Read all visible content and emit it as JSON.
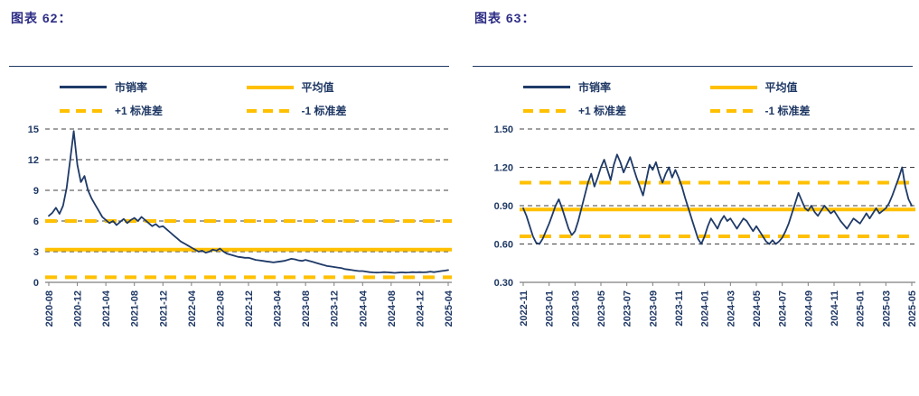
{
  "page": {
    "background": "#ffffff"
  },
  "chart_data": [
    {
      "type": "line",
      "title": "图表 62：",
      "legend": [
        {
          "label": "市销率",
          "style": "solid-blue"
        },
        {
          "label": "平均值",
          "style": "solid-yellow"
        },
        {
          "label": "+1 标准差",
          "style": "dashed-yellow"
        },
        {
          "label": "-1 标准差",
          "style": "dashed-yellow"
        }
      ],
      "x_labels": [
        "2020-08",
        "2020-12",
        "2021-04",
        "2021-08",
        "2021-12",
        "2022-04",
        "2022-08",
        "2022-12",
        "2023-04",
        "2023-08",
        "2023-12",
        "2024-04",
        "2024-08",
        "2024-12",
        "2025-04"
      ],
      "ylim": [
        0,
        15
      ],
      "yticks": [
        0,
        3,
        6,
        9,
        12,
        15
      ],
      "ytick_labels": [
        "0",
        "3",
        "6",
        "9",
        "12",
        "15"
      ],
      "average": 3.2,
      "plus_1_std": 6.0,
      "minus_1_std": 0.5,
      "series": [
        {
          "name": "市销率",
          "values": [
            6.5,
            6.8,
            7.3,
            6.7,
            7.5,
            9.2,
            12.0,
            14.8,
            11.5,
            9.8,
            10.4,
            9.0,
            8.2,
            7.6,
            7.0,
            6.4,
            6.1,
            5.8,
            6.0,
            5.6,
            5.9,
            6.2,
            5.8,
            6.1,
            6.3,
            6.0,
            6.4,
            6.1,
            5.8,
            5.5,
            5.7,
            5.4,
            5.5,
            5.2,
            4.9,
            4.6,
            4.3,
            4.0,
            3.8,
            3.6,
            3.4,
            3.2,
            3.0,
            3.1,
            2.9,
            3.0,
            3.2,
            3.1,
            3.3,
            3.0,
            2.8,
            2.7,
            2.6,
            2.5,
            2.45,
            2.4,
            2.4,
            2.3,
            2.2,
            2.15,
            2.1,
            2.05,
            2.0,
            1.95,
            2.0,
            2.05,
            2.1,
            2.2,
            2.3,
            2.25,
            2.15,
            2.1,
            2.2,
            2.1,
            2.0,
            1.9,
            1.8,
            1.7,
            1.6,
            1.55,
            1.5,
            1.45,
            1.4,
            1.3,
            1.25,
            1.2,
            1.15,
            1.1,
            1.1,
            1.05,
            1.0,
            0.97,
            0.95,
            0.97,
            1.0,
            0.98,
            0.95,
            0.93,
            0.95,
            0.98,
            0.95,
            0.97,
            1.0,
            0.98,
            1.0,
            0.98,
            1.0,
            1.05,
            1.0,
            1.05,
            1.1,
            1.15,
            1.2
          ]
        }
      ],
      "colors": {
        "series": "#1f3a68",
        "stat": "#ffc000",
        "grid": "#404040",
        "axis_text": "#1f3864"
      }
    },
    {
      "type": "line",
      "title": "图表 63：",
      "legend": [
        {
          "label": "市销率",
          "style": "solid-blue"
        },
        {
          "label": "平均值",
          "style": "solid-yellow"
        },
        {
          "label": "+1 标准差",
          "style": "dashed-yellow"
        },
        {
          "label": "-1 标准差",
          "style": "dashed-yellow"
        }
      ],
      "x_labels": [
        "2022-11",
        "2023-01",
        "2023-03",
        "2023-05",
        "2023-07",
        "2023-09",
        "2023-11",
        "2024-01",
        "2024-03",
        "2024-05",
        "2024-07",
        "2024-09",
        "2024-11",
        "2025-01",
        "2025-03",
        "2025-05"
      ],
      "ylim": [
        0.3,
        1.5
      ],
      "yticks": [
        0.3,
        0.6,
        0.9,
        1.2,
        1.5
      ],
      "ytick_labels": [
        "0.30",
        "0.60",
        "0.90",
        "1.20",
        "1.50"
      ],
      "average": 0.87,
      "plus_1_std": 1.08,
      "minus_1_std": 0.66,
      "series": [
        {
          "name": "市销率",
          "values": [
            0.88,
            0.82,
            0.74,
            0.66,
            0.61,
            0.6,
            0.64,
            0.7,
            0.76,
            0.83,
            0.9,
            0.95,
            0.88,
            0.8,
            0.72,
            0.67,
            0.7,
            0.78,
            0.88,
            0.98,
            1.08,
            1.15,
            1.05,
            1.12,
            1.2,
            1.26,
            1.18,
            1.1,
            1.22,
            1.3,
            1.24,
            1.16,
            1.22,
            1.28,
            1.2,
            1.12,
            1.05,
            0.98,
            1.1,
            1.22,
            1.18,
            1.24,
            1.15,
            1.08,
            1.15,
            1.2,
            1.12,
            1.18,
            1.12,
            1.05,
            0.96,
            0.88,
            0.8,
            0.72,
            0.64,
            0.6,
            0.66,
            0.74,
            0.8,
            0.76,
            0.72,
            0.78,
            0.82,
            0.78,
            0.8,
            0.76,
            0.72,
            0.76,
            0.8,
            0.78,
            0.74,
            0.7,
            0.74,
            0.7,
            0.66,
            0.62,
            0.6,
            0.63,
            0.6,
            0.62,
            0.65,
            0.7,
            0.76,
            0.84,
            0.92,
            1.0,
            0.94,
            0.88,
            0.86,
            0.9,
            0.85,
            0.82,
            0.86,
            0.9,
            0.87,
            0.84,
            0.86,
            0.82,
            0.78,
            0.75,
            0.72,
            0.76,
            0.8,
            0.78,
            0.76,
            0.8,
            0.84,
            0.8,
            0.84,
            0.88,
            0.84,
            0.86,
            0.88,
            0.92,
            0.98,
            1.05,
            1.12,
            1.2,
            1.05,
            0.95,
            0.9
          ]
        }
      ],
      "colors": {
        "series": "#1f3a68",
        "stat": "#ffc000",
        "grid": "#404040",
        "axis_text": "#1f3864"
      }
    }
  ]
}
